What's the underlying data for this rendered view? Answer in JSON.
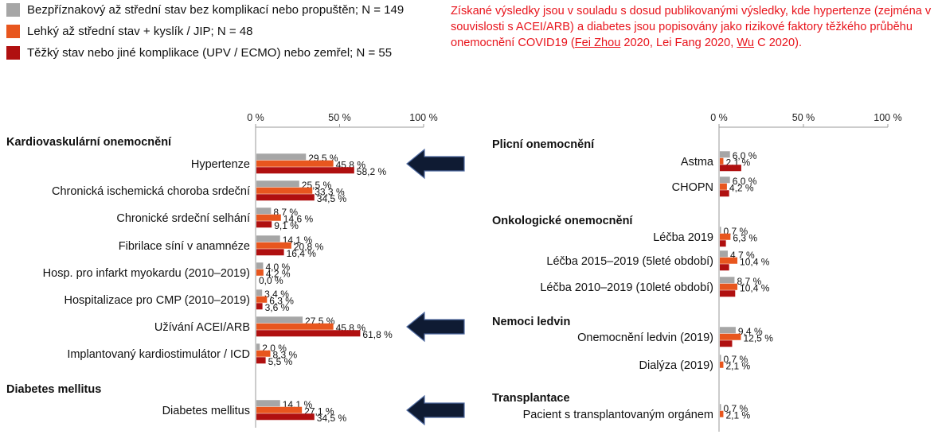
{
  "legend": [
    {
      "label": "Bezpříznakový až střední stav bez komplikací nebo propuštěn; N = 149",
      "color": "#a6a6a6"
    },
    {
      "label": "Lehký až střední stav + kyslík / JIP; N = 48",
      "color": "#e8561e"
    },
    {
      "label": "Těžký stav nebo jiné komplikace (UPV / ECMO) nebo zemřel; N = 55",
      "color": "#b01010"
    }
  ],
  "note": {
    "text_1": "Získané výsledky jsou v souladu s dosud publikovanými výsledky, kde hypertenze (zejména v souvislosti s ACEI/ARB) a diabetes jsou popisovány jako rizikové faktory těžkého průběhu onemocnění COVID19 (",
    "ref_1": "Fei Zhou",
    "text_2": " 2020, Lei Fang 2020, ",
    "ref_2": "Wu",
    "text_3": " C 2020)."
  },
  "chart_data": [
    {
      "type": "bar",
      "orientation": "horizontal",
      "xlim": [
        0,
        100
      ],
      "x_ticks": [
        "0 %",
        "50 %",
        "100 %"
      ],
      "series": [
        {
          "name": "Bezpříznakový až střední stav bez komplikací nebo propuštěn; N = 149",
          "color": "#a6a6a6"
        },
        {
          "name": "Lehký až střední stav + kyslík / JIP; N = 48",
          "color": "#e8561e"
        },
        {
          "name": "Těžký stav nebo jiné komplikace (UPV / ECMO) nebo zemřel; N = 55",
          "color": "#b01010"
        }
      ],
      "groups": [
        {
          "section": "Kardiovaskulární onemocnění",
          "items": [
            {
              "label": "Hypertenze",
              "values": [
                29.5,
                45.8,
                58.2
              ],
              "labels": [
                "29,5 %",
                "45,8 %",
                "58,2 %"
              ],
              "arrow": true
            },
            {
              "label": "Chronická ischemická choroba srdeční",
              "values": [
                25.5,
                33.3,
                34.5
              ],
              "labels": [
                "25,5 %",
                "33,3 %",
                "34,5 %"
              ]
            },
            {
              "label": "Chronické srdeční selhání",
              "values": [
                8.7,
                14.6,
                9.1
              ],
              "labels": [
                "8,7 %",
                "14,6 %",
                "9,1 %"
              ]
            },
            {
              "label": "Fibrilace síní v anamnéze",
              "values": [
                14.1,
                20.8,
                16.4
              ],
              "labels": [
                "14,1 %",
                "20,8 %",
                "16,4 %"
              ]
            },
            {
              "label": "Hosp. pro infarkt myokardu (2010–2019)",
              "values": [
                4.0,
                4.2,
                0.0
              ],
              "labels": [
                "4,0 %",
                "4,2 %",
                "0,0 %"
              ]
            },
            {
              "label": "Hospitalizace pro CMP (2010–2019)",
              "values": [
                3.4,
                6.3,
                3.6
              ],
              "labels": [
                "3,4 %",
                "6,3 %",
                "3,6 %"
              ]
            },
            {
              "label": "Užívání ACEI/ARB",
              "values": [
                27.5,
                45.8,
                61.8
              ],
              "labels": [
                "27,5 %",
                "45,8 %",
                "61,8 %"
              ],
              "arrow": true
            },
            {
              "label": "Implantovaný kardiostimulátor / ICD",
              "values": [
                2.0,
                8.3,
                5.5
              ],
              "labels": [
                "2,0 %",
                "8,3 %",
                "5,5 %"
              ]
            }
          ]
        },
        {
          "section": "Diabetes mellitus",
          "items": [
            {
              "label": "Diabetes mellitus",
              "values": [
                14.1,
                27.1,
                34.5
              ],
              "labels": [
                "14,1 %",
                "27,1 %",
                "34,5 %"
              ],
              "arrow": true
            }
          ]
        }
      ]
    },
    {
      "type": "bar",
      "orientation": "horizontal",
      "xlim": [
        0,
        100
      ],
      "x_ticks": [
        "0 %",
        "50 %",
        "100 %"
      ],
      "series": [
        {
          "name": "Bezpříznakový až střední stav bez komplikací nebo propuštěn; N = 149",
          "color": "#a6a6a6"
        },
        {
          "name": "Lehký až střední stav + kyslík / JIP; N = 48",
          "color": "#e8561e"
        },
        {
          "name": "Těžký stav nebo jiné komplikace (UPV / ECMO) nebo zemřel; N = 55",
          "color": "#b01010"
        }
      ],
      "groups": [
        {
          "section": "Plicní onemocnění",
          "items": [
            {
              "label": "Astma",
              "values": [
                6.0,
                2.1,
                12.7
              ],
              "labels": [
                "6,0 %",
                "2,1 %",
                ""
              ]
            },
            {
              "label": "CHOPN",
              "values": [
                6.0,
                4.2,
                5.5
              ],
              "labels": [
                "6,0 %",
                "4,2 %",
                ""
              ]
            }
          ]
        },
        {
          "section": "Onkologické onemocnění",
          "items": [
            {
              "label": "Léčba 2019",
              "values": [
                0.7,
                6.3,
                3.6
              ],
              "labels": [
                "0,7 %",
                "6,3 %",
                ""
              ]
            },
            {
              "label": "Léčba 2015–2019 (5leté období)",
              "values": [
                4.7,
                10.4,
                5.5
              ],
              "labels": [
                "4,7 %",
                "10,4 %",
                ""
              ]
            },
            {
              "label": "Léčba 2010–2019 (10leté období)",
              "values": [
                8.7,
                10.4,
                9.1
              ],
              "labels": [
                "8,7 %",
                "10,4 %",
                ""
              ]
            }
          ]
        },
        {
          "section": "Nemoci ledvin",
          "items": [
            {
              "label": "Onemocnění ledvin (2019)",
              "values": [
                9.4,
                12.5,
                7.3
              ],
              "labels": [
                "9,4 %",
                "12,5 %",
                ""
              ]
            },
            {
              "label": "Dialýza (2019)",
              "values": [
                0.7,
                2.1,
                0.0
              ],
              "labels": [
                "0,7 %",
                "2,1 %",
                ""
              ]
            }
          ]
        },
        {
          "section": "Transplantace",
          "items": [
            {
              "label": "Pacient s transplantovaným orgánem",
              "values": [
                0.7,
                2.1,
                0.0
              ],
              "labels": [
                "0,7 %",
                "2,1 %",
                ""
              ]
            }
          ]
        }
      ]
    }
  ]
}
